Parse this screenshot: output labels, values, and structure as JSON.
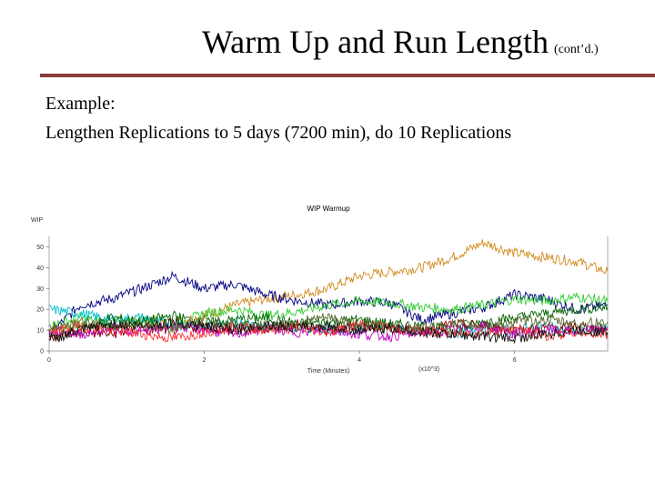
{
  "slide": {
    "title": "Warm Up and Run Length",
    "title_suffix": "(cont’d.)",
    "body_lines": [
      "Example:",
      "Lengthen Replications to 5 days (7200 min), do 10 Replications"
    ],
    "rule_color": "#8b3a3a"
  },
  "chart_data": {
    "type": "line",
    "title": "WIP Warmup",
    "ylabel": "WIP",
    "xlabel": "Time (Minutes)",
    "x_multiplier_label": "(x10^3)",
    "xlim": [
      0,
      7.2
    ],
    "ylim": [
      0,
      55
    ],
    "xticks": [
      0,
      2,
      4,
      6
    ],
    "xtick_labels": [
      "0",
      "2",
      "4",
      "6"
    ],
    "yticks": [
      0,
      10,
      20,
      30,
      40,
      50
    ],
    "ytick_labels": [
      "0",
      "10",
      "20",
      "30",
      "40",
      "50"
    ],
    "grid": false,
    "legend": "none",
    "series": [
      {
        "color": "#d08a1c",
        "x": [
          0,
          0.4,
          0.8,
          1.2,
          1.6,
          2.0,
          2.4,
          2.8,
          3.2,
          3.6,
          4.0,
          4.4,
          4.8,
          5.2,
          5.6,
          6.0,
          6.4,
          6.8,
          7.2
        ],
        "values": [
          10,
          13,
          11,
          15,
          14,
          17,
          22,
          25,
          27,
          30,
          36,
          38,
          40,
          45,
          52,
          47,
          45,
          43,
          38
        ]
      },
      {
        "color": "#000080",
        "x": [
          0,
          0.4,
          0.8,
          1.2,
          1.6,
          2.0,
          2.4,
          2.8,
          3.2,
          3.6,
          4.0,
          4.4,
          4.8,
          5.2,
          5.6,
          6.0,
          6.4,
          6.8,
          7.2
        ],
        "values": [
          8,
          22,
          25,
          30,
          36,
          30,
          32,
          27,
          24,
          22,
          24,
          23,
          15,
          18,
          21,
          27,
          25,
          20,
          22
        ]
      },
      {
        "color": "#32cd32",
        "x": [
          0,
          0.4,
          0.8,
          1.2,
          1.6,
          2.0,
          2.4,
          2.8,
          3.2,
          3.6,
          4.0,
          4.4,
          4.8,
          5.2,
          5.6,
          6.0,
          6.4,
          6.8,
          7.2
        ],
        "values": [
          12,
          16,
          13,
          15,
          12,
          18,
          20,
          17,
          19,
          22,
          24,
          23,
          21,
          20,
          22,
          25,
          24,
          26,
          24
        ]
      },
      {
        "color": "#00bcd4",
        "x": [
          0,
          0.4,
          0.8,
          1.2,
          1.6,
          2.0,
          2.4,
          2.8,
          3.2,
          3.6,
          4.0,
          4.4,
          4.8,
          5.2,
          5.6,
          6.0,
          6.4,
          6.8,
          7.2
        ],
        "values": [
          20,
          18,
          15,
          16,
          13,
          12,
          14,
          11,
          12,
          10,
          11,
          12,
          9,
          8,
          11,
          10,
          12,
          9,
          11
        ]
      },
      {
        "color": "#006400",
        "x": [
          0,
          0.4,
          0.8,
          1.2,
          1.6,
          2.0,
          2.4,
          2.8,
          3.2,
          3.6,
          4.0,
          4.4,
          4.8,
          5.2,
          5.6,
          6.0,
          6.4,
          6.8,
          7.2
        ],
        "values": [
          6,
          10,
          16,
          14,
          17,
          13,
          15,
          16,
          13,
          14,
          15,
          13,
          12,
          10,
          14,
          16,
          18,
          20,
          21
        ]
      },
      {
        "color": "#8b0000",
        "x": [
          0,
          0.4,
          0.8,
          1.2,
          1.6,
          2.0,
          2.4,
          2.8,
          3.2,
          3.6,
          4.0,
          4.4,
          4.8,
          5.2,
          5.6,
          6.0,
          6.4,
          6.8,
          7.2
        ],
        "values": [
          7,
          9,
          8,
          11,
          10,
          12,
          9,
          11,
          13,
          10,
          12,
          11,
          9,
          13,
          12,
          10,
          11,
          12,
          10
        ]
      },
      {
        "color": "#c000c0",
        "x": [
          0,
          0.4,
          0.8,
          1.2,
          1.6,
          2.0,
          2.4,
          2.8,
          3.2,
          3.6,
          4.0,
          4.4,
          4.8,
          5.2,
          5.6,
          6.0,
          6.4,
          6.8,
          7.2
        ],
        "values": [
          10,
          8,
          11,
          9,
          12,
          10,
          8,
          11,
          9,
          10,
          8,
          7,
          9,
          10,
          12,
          8,
          10,
          9,
          11
        ]
      },
      {
        "color": "#ff3030",
        "x": [
          0,
          0.4,
          0.8,
          1.2,
          1.6,
          2.0,
          2.4,
          2.8,
          3.2,
          3.6,
          4.0,
          4.4,
          4.8,
          5.2,
          5.6,
          6.0,
          6.4,
          6.8,
          7.2
        ],
        "values": [
          9,
          12,
          10,
          8,
          6,
          9,
          12,
          10,
          11,
          9,
          13,
          11,
          10,
          8,
          9,
          11,
          7,
          9,
          8
        ]
      },
      {
        "color": "#556b2f",
        "x": [
          0,
          0.4,
          0.8,
          1.2,
          1.6,
          2.0,
          2.4,
          2.8,
          3.2,
          3.6,
          4.0,
          4.4,
          4.8,
          5.2,
          5.6,
          6.0,
          6.4,
          6.8,
          7.2
        ],
        "values": [
          11,
          14,
          12,
          13,
          11,
          15,
          13,
          12,
          14,
          16,
          13,
          12,
          11,
          13,
          12,
          14,
          15,
          13,
          14
        ]
      },
      {
        "color": "#101010",
        "x": [
          0,
          0.4,
          0.8,
          1.2,
          1.6,
          2.0,
          2.4,
          2.8,
          3.2,
          3.6,
          4.0,
          4.4,
          4.8,
          5.2,
          5.6,
          6.0,
          6.4,
          6.8,
          7.2
        ],
        "values": [
          5,
          10,
          13,
          12,
          14,
          12,
          10,
          13,
          11,
          12,
          10,
          11,
          9,
          8,
          7,
          6,
          8,
          10,
          9
        ]
      }
    ]
  }
}
